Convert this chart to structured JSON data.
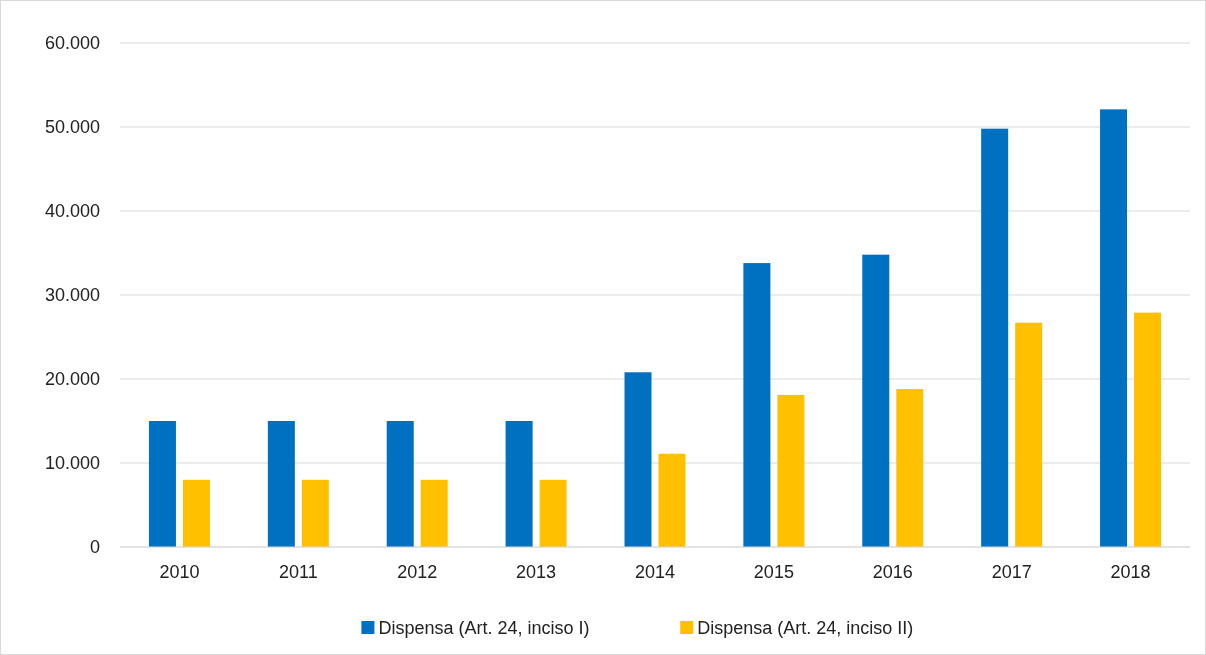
{
  "chart_data": {
    "type": "bar",
    "categories": [
      "2010",
      "2011",
      "2012",
      "2013",
      "2014",
      "2015",
      "2016",
      "2017",
      "2018"
    ],
    "series": [
      {
        "name": "Dispensa (Art. 24, inciso I)",
        "color": "#0070c0",
        "values": [
          15000,
          15000,
          15000,
          15000,
          20800,
          33800,
          34800,
          49800,
          52100
        ]
      },
      {
        "name": "Dispensa (Art. 24, inciso II)",
        "color": "#ffc000",
        "values": [
          8000,
          8000,
          8000,
          8000,
          11100,
          18100,
          18800,
          26700,
          27900
        ]
      }
    ],
    "ylim": [
      0,
      60000
    ],
    "yticks": [
      0,
      {
        "value": 10000,
        "label": "10.000"
      },
      {
        "value": 20000,
        "label": "20.000"
      },
      {
        "value": 30000,
        "label": "30.000"
      },
      {
        "value": 40000,
        "label": "40.000"
      },
      {
        "value": 50000,
        "label": "50.000"
      },
      {
        "value": 60000,
        "label": "60.000"
      }
    ],
    "grid": "y",
    "legend": "bottom"
  }
}
